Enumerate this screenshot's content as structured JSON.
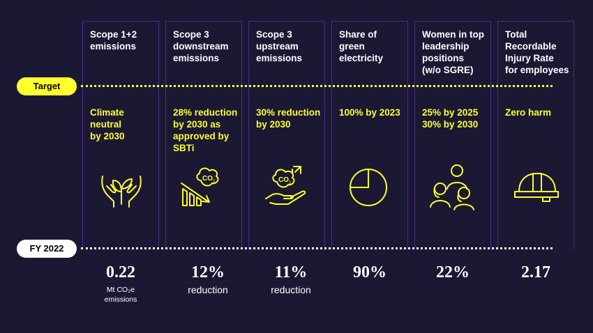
{
  "target_label": "Target",
  "fy_label": "FY 2022",
  "colors": {
    "background": "#1b1833",
    "accent": "#ffff2e",
    "border": "#4a2a8c",
    "text": "#ffffff"
  },
  "columns": [
    {
      "title": "Scope 1+2\nemissions",
      "target": "Climate\nneutral\nby 2030",
      "icon": "hands-plant-icon",
      "value": "0.22",
      "sub": "Mt CO₂e\nemissions"
    },
    {
      "title": "Scope 3\ndownstream\nemissions",
      "target": "28% reduction\nby 2030 as\napproved by\nSBTi",
      "icon": "co2-reduction-chart-icon",
      "value": "12%",
      "sub": "reduction"
    },
    {
      "title": "Scope 3\nupstream\nemissions",
      "target": "30% reduction\nby 2030",
      "icon": "co2-hand-icon",
      "value": "11%",
      "sub": "reduction"
    },
    {
      "title": "Share of\ngreen\nelectricity",
      "target": "100% by 2023",
      "icon": "pie-chart-icon",
      "value": "90%",
      "sub": ""
    },
    {
      "title": "Women in top\nleadership\npositions\n(w/o SGRE)",
      "target": "25% by 2025\n30% by 2030",
      "icon": "people-group-icon",
      "value": "22%",
      "sub": ""
    },
    {
      "title": "Total\nRecordable\nInjury Rate\nfor employees",
      "target": "Zero harm",
      "icon": "hard-hat-icon",
      "value": "2.17",
      "sub": ""
    }
  ]
}
